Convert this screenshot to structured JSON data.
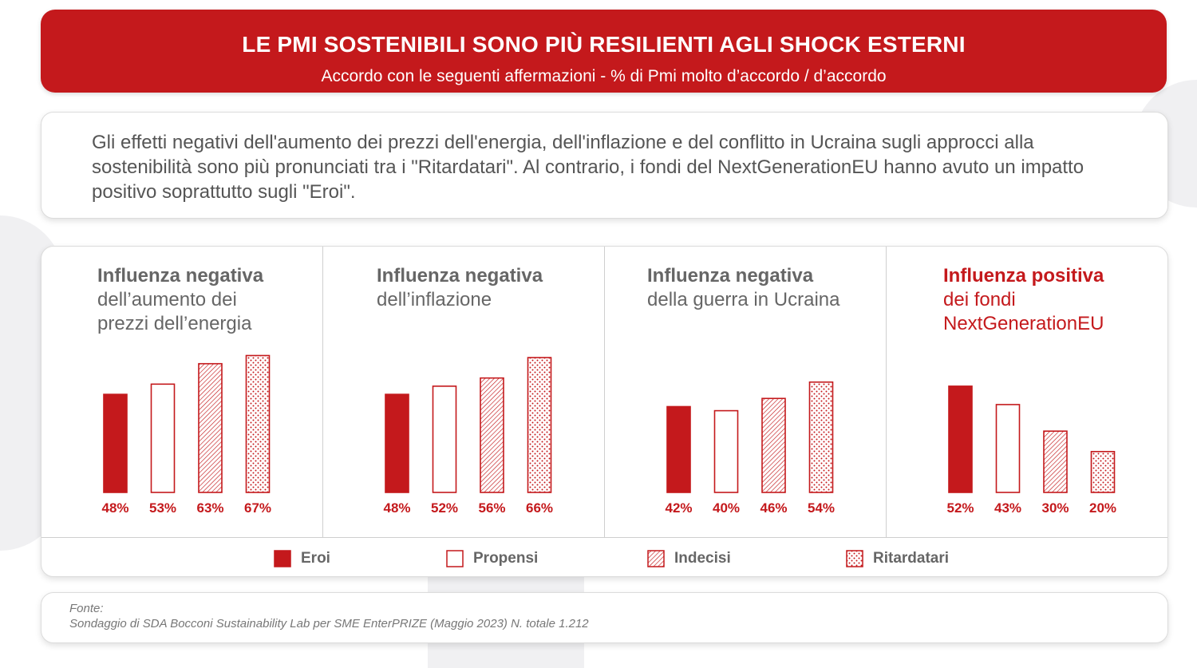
{
  "header": {
    "title": "LE PMI SOSTENIBILI SONO PIÙ RESILIENTI AGLI SHOCK ESTERNI",
    "subtitle": "Accordo con le seguenti affermazioni - % di Pmi molto d’accordo / d’accordo"
  },
  "intro": {
    "text": "Gli effetti negativi dell'aumento dei prezzi dell'energia, dell'inflazione e del conflitto in Ucraina sugli approcci alla sostenibilità sono più pronunciati tra i \"Ritardatari\". Al contrario, i fondi del NextGenerationEU hanno avuto un impatto positivo soprattutto sugli \"Eroi\"."
  },
  "colors": {
    "accent": "#c4191c",
    "text_gray": "#666666"
  },
  "legend": [
    "Eroi",
    "Propensi",
    "Indecisi",
    "Ritardatari"
  ],
  "chart_data": [
    {
      "type": "bar",
      "title_bold": "Influenza negativa",
      "title_lines": [
        "dell’aumento dei",
        "prezzi dell’energia"
      ],
      "categories": [
        "Eroi",
        "Propensi",
        "Indecisi",
        "Ritardatari"
      ],
      "values": [
        48,
        53,
        63,
        67
      ],
      "labels": [
        "48%",
        "53%",
        "63%",
        "67%"
      ],
      "unit": "%"
    },
    {
      "type": "bar",
      "title_bold": "Influenza negativa",
      "title_lines": [
        "dell’inflazione"
      ],
      "categories": [
        "Eroi",
        "Propensi",
        "Indecisi",
        "Ritardatari"
      ],
      "values": [
        48,
        52,
        56,
        66
      ],
      "labels": [
        "48%",
        "52%",
        "56%",
        "66%"
      ],
      "unit": "%"
    },
    {
      "type": "bar",
      "title_bold": "Influenza negativa",
      "title_lines": [
        "della guerra in Ucraina"
      ],
      "categories": [
        "Eroi",
        "Propensi",
        "Indecisi",
        "Ritardatari"
      ],
      "values": [
        42,
        40,
        46,
        54
      ],
      "labels": [
        "42%",
        "40%",
        "46%",
        "54%"
      ],
      "unit": "%"
    },
    {
      "type": "bar",
      "title_bold": "Influenza positiva",
      "title_lines": [
        "dei fondi",
        "NextGenerationEU"
      ],
      "categories": [
        "Eroi",
        "Propensi",
        "Indecisi",
        "Ritardatari"
      ],
      "values": [
        52,
        43,
        30,
        20
      ],
      "labels": [
        "52%",
        "43%",
        "30%",
        "20%"
      ],
      "unit": "%",
      "highlight": true
    }
  ],
  "source": {
    "label": "Fonte:",
    "text": "Sondaggio di SDA Bocconi Sustainability Lab per SME EnterPRIZE (Maggio 2023) N. totale 1.212"
  }
}
